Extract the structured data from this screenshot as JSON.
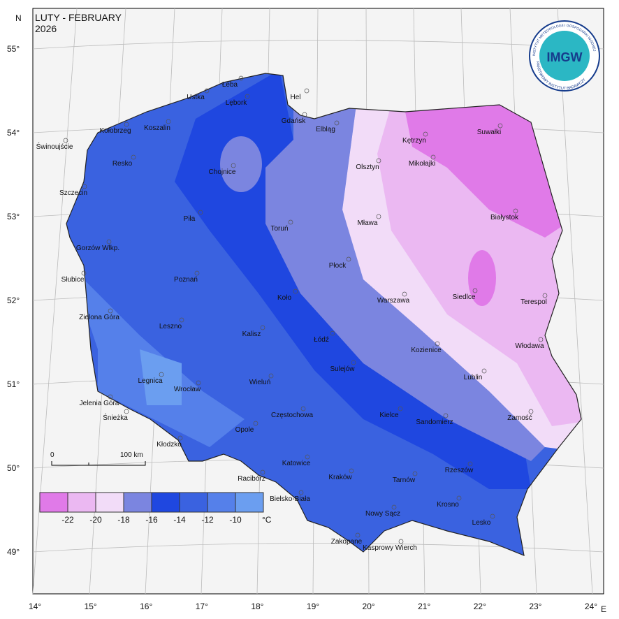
{
  "title": "LUTY - FEBRUARY",
  "year": "2026",
  "north": "N",
  "east": "E",
  "latitude_labels": [
    "55°",
    "54°",
    "53°",
    "52°",
    "51°",
    "50°",
    "49°"
  ],
  "longitude_labels": [
    "14°",
    "15°",
    "16°",
    "17°",
    "18°",
    "19°",
    "20°",
    "21°",
    "22°",
    "23°",
    "24°"
  ],
  "scale_bar": {
    "start": "0",
    "end": "100 km"
  },
  "legend": {
    "colors": [
      "#e07ae8",
      "#ebb8f2",
      "#f2dcf8",
      "#7b85e0",
      "#1f47e0",
      "#3a62e0",
      "#5580ea",
      "#6b9ef0"
    ],
    "labels": [
      "-22",
      "-20",
      "-18",
      "-16",
      "-14",
      "-12",
      "-10"
    ],
    "unit": "°C"
  },
  "logo": {
    "name": "IMGW",
    "ring_top": "INSTYTUT METEOROLOGII I GOSPODARKI WODNEJ",
    "ring_bottom": "PAŃSTWOWY INSTYTUT BADAWCZY"
  },
  "cities": [
    "Łeba",
    "Ustka",
    "Lębork",
    "Hel",
    "Gdańsk",
    "Elbląg",
    "Kołobrzeg",
    "Koszalin",
    "Świnoujście",
    "Resko",
    "Chojnice",
    "Olsztyn",
    "Kętrzyn",
    "Mikołajki",
    "Suwałki",
    "Szczecin",
    "Piła",
    "Toruń",
    "Mława",
    "Białystok",
    "Gorzów Wlkp.",
    "Płock",
    "Słubice",
    "Poznań",
    "Koło",
    "Warszawa",
    "Siedlce",
    "Terespol",
    "Zielona Góra",
    "Leszno",
    "Kalisz",
    "Łódź",
    "Kozienice",
    "Włodawa",
    "Sulejów",
    "Legnica",
    "Wrocław",
    "Wieluń",
    "Lublin",
    "Jelenia Góra",
    "Śnieżka",
    "Częstochowa",
    "Kielce",
    "Sandomierz",
    "Zamość",
    "Opole",
    "Kłodzko",
    "Katowice",
    "Rzeszów",
    "Racibórz",
    "Kraków",
    "Tarnów",
    "Bielsko-Biała",
    "Krosno",
    "Nowy Sącz",
    "Lesko",
    "Zakopane",
    "Kasprowy Wierch"
  ]
}
